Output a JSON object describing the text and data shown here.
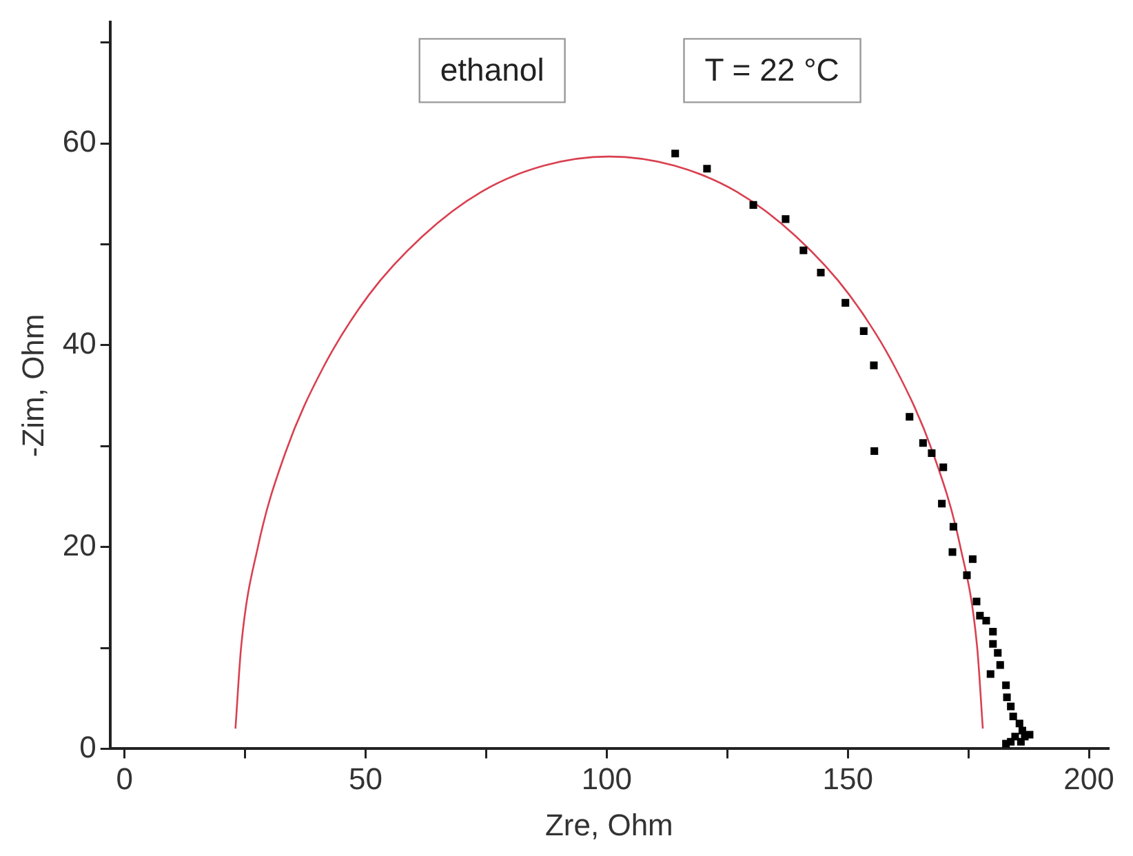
{
  "chart_data": {
    "type": "scatter",
    "xlabel": "Zre, Ohm",
    "ylabel": "-Zim, Ohm",
    "annotations": [
      "ethanol",
      "T = 22 °C"
    ],
    "xlim": [
      -3,
      204
    ],
    "xticks": [
      0,
      {
        "value": 25,
        "label": null
      },
      50,
      {
        "value": 75,
        "label": null
      },
      100,
      {
        "value": 125,
        "label": null
      },
      150,
      {
        "value": 175,
        "label": null
      },
      200
    ],
    "ylim": [
      0,
      72
    ],
    "yticks": [
      0,
      {
        "value": 10,
        "label": null
      },
      20,
      {
        "value": 30,
        "label": null
      },
      40,
      {
        "value": 50,
        "label": null
      },
      60,
      {
        "value": 70,
        "label": null
      }
    ],
    "grid": false,
    "legend": false,
    "series": [
      {
        "marker": "square",
        "color": "#000000",
        "x": [
          114.2,
          120.8,
          130.4,
          137.1,
          140.8,
          144.4,
          149.5,
          153.3,
          155.4,
          162.8,
          155.5,
          165.6,
          167.4,
          169.8,
          169.5,
          171.9,
          171.7,
          175.9,
          174.7,
          176.7,
          177.4,
          178.7,
          180.1,
          180.1,
          181.1,
          181.6,
          179.6,
          182.8,
          183.0,
          183.8,
          184.3,
          185.6,
          186.2,
          184.7,
          186.7,
          183.8,
          185.9,
          187.7,
          182.8
        ],
        "values": [
          59.0,
          57.5,
          53.9,
          52.5,
          49.4,
          47.2,
          44.2,
          41.4,
          38.0,
          32.9,
          29.5,
          30.3,
          29.3,
          27.9,
          24.3,
          22.0,
          19.5,
          18.8,
          17.2,
          14.6,
          13.2,
          12.7,
          11.6,
          10.4,
          9.5,
          8.3,
          7.4,
          6.3,
          5.1,
          4.2,
          3.2,
          2.5,
          1.8,
          1.2,
          1.2,
          0.7,
          0.7,
          1.4,
          0.5
        ]
      },
      {
        "type": "line",
        "marker": "none",
        "line_style": "solid",
        "color": "#d94050",
        "x": [
          23.0,
          24.2,
          27.7,
          33.4,
          41.1,
          50.7,
          61.8,
          74.0,
          87.0,
          100.5,
          114.0,
          127.0,
          139.2,
          150.3,
          159.9,
          167.6,
          173.3,
          176.8,
          178.0
        ],
        "values": [
          2.0,
          10.2,
          20.1,
          29.4,
          37.7,
          45.0,
          50.8,
          55.2,
          57.8,
          58.7,
          57.8,
          55.2,
          50.8,
          45.0,
          37.7,
          29.4,
          20.1,
          10.2,
          2.0
        ]
      }
    ]
  }
}
